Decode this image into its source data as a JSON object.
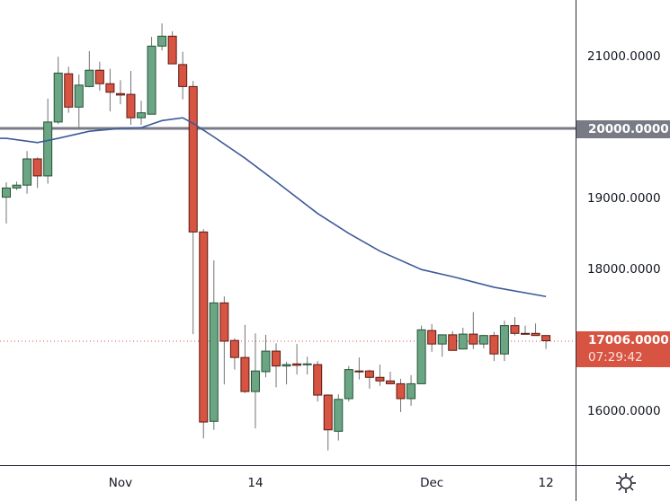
{
  "chart_data": {
    "type": "candlestick",
    "colors": {
      "up": "#6ba583",
      "up_border": "#225437",
      "down": "#d75442",
      "down_border": "#5b1a13",
      "ma_line": "#3c5a99",
      "hline": "#787b86",
      "last_price": "#d75442"
    },
    "candles_columns": [
      "date",
      "open",
      "high",
      "low",
      "close"
    ],
    "candles": [
      [
        "Oct 21",
        19030,
        19240,
        18660,
        19160
      ],
      [
        "Oct 22",
        19160,
        19250,
        19130,
        19200
      ],
      [
        "Oct 23",
        19200,
        19680,
        19080,
        19570
      ],
      [
        "Oct 24",
        19570,
        19590,
        19160,
        19330
      ],
      [
        "Oct 25",
        19330,
        20420,
        19220,
        20090
      ],
      [
        "Oct 26",
        20090,
        21010,
        20060,
        20780
      ],
      [
        "Oct 27",
        20770,
        20870,
        20220,
        20300
      ],
      [
        "Oct 28",
        20300,
        20760,
        20010,
        20610
      ],
      [
        "Oct 29",
        20590,
        21090,
        20580,
        20820
      ],
      [
        "Oct 30",
        20820,
        20940,
        20530,
        20630
      ],
      [
        "Oct 31",
        20630,
        20840,
        20240,
        20510
      ],
      [
        "Nov 1",
        20490,
        20680,
        20340,
        20470
      ],
      [
        "Nov 2",
        20480,
        20810,
        20050,
        20150
      ],
      [
        "Nov 3",
        20150,
        20390,
        20050,
        20220
      ],
      [
        "Nov 4",
        20200,
        21290,
        20200,
        21160
      ],
      [
        "Nov 5",
        21160,
        21480,
        21100,
        21300
      ],
      [
        "Nov 6",
        21300,
        21370,
        20910,
        20910
      ],
      [
        "Nov 7",
        20900,
        21080,
        20410,
        20590
      ],
      [
        "Nov 8",
        20590,
        20670,
        17100,
        18540
      ],
      [
        "Nov 9",
        18540,
        18580,
        15630,
        15860
      ],
      [
        "Nov 10",
        15870,
        18140,
        15750,
        17540
      ],
      [
        "Nov 11",
        17540,
        17630,
        16390,
        17000
      ],
      [
        "Nov 12",
        17010,
        17040,
        16600,
        16770
      ],
      [
        "Nov 13",
        16770,
        17230,
        16270,
        16290
      ],
      [
        "Nov 14",
        16290,
        17110,
        15770,
        16580
      ],
      [
        "Nov 15",
        16570,
        17090,
        16490,
        16860
      ],
      [
        "Nov 16",
        16860,
        16970,
        16350,
        16650
      ],
      [
        "Nov 17",
        16650,
        16710,
        16390,
        16670
      ],
      [
        "Nov 18",
        16680,
        16960,
        16530,
        16660
      ],
      [
        "Nov 19",
        16670,
        16780,
        16530,
        16680
      ],
      [
        "Nov 20",
        16670,
        16720,
        16150,
        16240
      ],
      [
        "Nov 21",
        16240,
        16250,
        15460,
        15750
      ],
      [
        "Nov 22",
        15730,
        16250,
        15600,
        16180
      ],
      [
        "Nov 23",
        16190,
        16650,
        16150,
        16600
      ],
      [
        "Nov 24",
        16580,
        16770,
        16460,
        16570
      ],
      [
        "Nov 25",
        16580,
        16600,
        16330,
        16490
      ],
      [
        "Nov 26",
        16490,
        16670,
        16370,
        16440
      ],
      [
        "Nov 27",
        16440,
        16570,
        16390,
        16400
      ],
      [
        "Nov 28",
        16400,
        16470,
        16000,
        16190
      ],
      [
        "Nov 29",
        16190,
        16520,
        16090,
        16400
      ],
      [
        "Nov 30",
        16400,
        17220,
        16400,
        17160
      ],
      [
        "Dec 1",
        17150,
        17240,
        16850,
        16960
      ],
      [
        "Dec 2",
        16960,
        17090,
        16780,
        17090
      ],
      [
        "Dec 3",
        17090,
        17140,
        16870,
        16870
      ],
      [
        "Dec 4",
        16890,
        17190,
        16890,
        17100
      ],
      [
        "Dec 5",
        17100,
        17410,
        16890,
        16960
      ],
      [
        "Dec 6",
        16960,
        17090,
        16900,
        17080
      ],
      [
        "Dec 7",
        17080,
        17130,
        16720,
        16820
      ],
      [
        "Dec 8",
        16820,
        17290,
        16720,
        17220
      ],
      [
        "Dec 9",
        17220,
        17340,
        17080,
        17110
      ],
      [
        "Dec 10",
        17110,
        17220,
        17090,
        17100
      ],
      [
        "Dec 11",
        17110,
        17250,
        17080,
        17080
      ],
      [
        "Dec 12",
        17080,
        17080,
        16890,
        17006
      ]
    ],
    "moving_average": [
      [
        "Oct 21",
        19860
      ],
      [
        "Oct 24",
        19800
      ],
      [
        "Oct 26",
        19860
      ],
      [
        "Oct 29",
        19960
      ],
      [
        "Nov 1",
        20000
      ],
      [
        "Nov 3",
        20010
      ],
      [
        "Nov 5",
        20110
      ],
      [
        "Nov 7",
        20150
      ],
      [
        "Nov 8",
        20070
      ],
      [
        "Nov 10",
        19880
      ],
      [
        "Nov 13",
        19580
      ],
      [
        "Nov 16",
        19250
      ],
      [
        "Nov 20",
        18800
      ],
      [
        "Nov 23",
        18520
      ],
      [
        "Nov 26",
        18270
      ],
      [
        "Nov 30",
        18010
      ],
      [
        "Dec 3",
        17910
      ],
      [
        "Dec 7",
        17760
      ],
      [
        "Dec 12",
        17630
      ]
    ],
    "horizontal_line": 20000,
    "ylim": [
      15100,
      21700
    ],
    "y_ticks": [
      "21000.0000",
      "19000.0000",
      "18000.0000",
      "16000.0000"
    ],
    "y_tick_values": [
      21000,
      19000,
      18000,
      16000
    ],
    "x_ticks": [
      {
        "label": "Nov",
        "date": "Nov 1"
      },
      {
        "label": "14",
        "date": "Nov 14"
      },
      {
        "label": "Dec",
        "date": "Dec 1"
      },
      {
        "label": "12",
        "date": "Dec 12"
      }
    ],
    "hline_label": "20000.0000",
    "last_price": {
      "value": 17006,
      "label": "17006.0000",
      "countdown": "07:29:42"
    },
    "grid": false
  },
  "toolbar": {
    "settings_icon": "sun-gear-icon"
  }
}
